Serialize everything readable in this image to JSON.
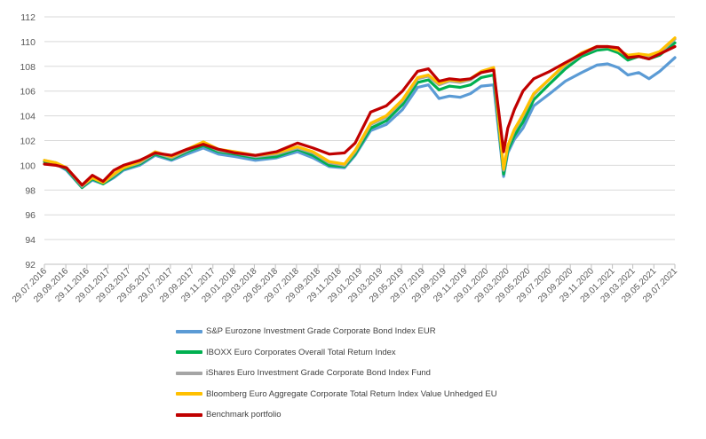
{
  "chart_data": {
    "type": "line",
    "title": "",
    "xlabel": "",
    "ylabel": "",
    "ylim": [
      92,
      112
    ],
    "yticks": [
      92,
      94,
      96,
      98,
      100,
      102,
      104,
      106,
      108,
      110,
      112
    ],
    "xlim": [
      "2016-07-29",
      "2021-07-29"
    ],
    "xticks": [
      "29.07.2016",
      "29.09.2016",
      "29.11.2016",
      "29.01.2017",
      "29.03.2017",
      "29.05.2017",
      "29.07.2017",
      "29.09.2017",
      "29.11.2017",
      "29.01.2018",
      "29.03.2018",
      "29.05.2018",
      "29.07.2018",
      "29.09.2018",
      "29.11.2018",
      "29.01.2019",
      "29.03.2019",
      "29.05.2019",
      "29.07.2019",
      "29.09.2019",
      "29.11.2019",
      "29.01.2020",
      "29.03.2020",
      "29.05.2020",
      "29.07.2020",
      "29.09.2020",
      "29.11.2020",
      "29.01.2021",
      "29.03.2021",
      "29.05.2021",
      "29.07.2021"
    ],
    "grid": "horizontal",
    "legend_position": "bottom",
    "series": [
      {
        "name": "S&P Eurozone Investment Grade Corporate Bond Index EUR",
        "color": "#5b9bd5",
        "x": [
          "2016-07-29",
          "2016-09-01",
          "2016-10-01",
          "2016-11-15",
          "2016-12-15",
          "2017-01-15",
          "2017-02-15",
          "2017-03-15",
          "2017-05-01",
          "2017-06-15",
          "2017-08-01",
          "2017-09-15",
          "2017-11-01",
          "2017-12-15",
          "2018-02-01",
          "2018-04-01",
          "2018-06-01",
          "2018-08-01",
          "2018-09-15",
          "2018-11-01",
          "2018-12-15",
          "2019-01-15",
          "2019-03-01",
          "2019-04-15",
          "2019-06-01",
          "2019-07-15",
          "2019-08-15",
          "2019-09-15",
          "2019-10-15",
          "2019-11-15",
          "2019-12-15",
          "2020-01-15",
          "2020-02-20",
          "2020-03-20",
          "2020-04-01",
          "2020-04-20",
          "2020-05-15",
          "2020-06-15",
          "2020-08-01",
          "2020-09-15",
          "2020-11-01",
          "2020-12-15",
          "2021-01-15",
          "2021-02-15",
          "2021-03-15",
          "2021-04-15",
          "2021-05-15",
          "2021-06-15",
          "2021-07-29"
        ],
        "y": [
          100.3,
          100.1,
          99.6,
          98.2,
          98.8,
          98.5,
          99.0,
          99.6,
          100.0,
          100.8,
          100.4,
          100.9,
          101.4,
          100.9,
          100.7,
          100.4,
          100.6,
          101.1,
          100.6,
          99.9,
          99.8,
          100.8,
          102.8,
          103.3,
          104.5,
          106.3,
          106.5,
          105.4,
          105.6,
          105.5,
          105.8,
          106.4,
          106.5,
          99.1,
          101.0,
          102.1,
          103.0,
          104.8,
          105.8,
          106.8,
          107.5,
          108.1,
          108.2,
          107.9,
          107.3,
          107.5,
          107.0,
          107.6,
          108.7
        ]
      },
      {
        "name": "IBOXX Euro Corporates Overall Total Return Index",
        "color": "#00b050",
        "x": [
          "2016-07-29",
          "2016-09-01",
          "2016-10-01",
          "2016-11-15",
          "2016-12-15",
          "2017-01-15",
          "2017-02-15",
          "2017-03-15",
          "2017-05-01",
          "2017-06-15",
          "2017-08-01",
          "2017-09-15",
          "2017-11-01",
          "2017-12-15",
          "2018-02-01",
          "2018-04-01",
          "2018-06-01",
          "2018-08-01",
          "2018-09-15",
          "2018-11-01",
          "2018-12-15",
          "2019-01-15",
          "2019-03-01",
          "2019-04-15",
          "2019-06-01",
          "2019-07-15",
          "2019-08-15",
          "2019-09-15",
          "2019-10-15",
          "2019-11-15",
          "2019-12-15",
          "2020-01-15",
          "2020-02-20",
          "2020-03-20",
          "2020-04-01",
          "2020-04-20",
          "2020-05-15",
          "2020-06-15",
          "2020-08-01",
          "2020-09-15",
          "2020-11-01",
          "2020-12-15",
          "2021-01-15",
          "2021-02-15",
          "2021-03-15",
          "2021-04-15",
          "2021-05-15",
          "2021-06-15",
          "2021-07-29"
        ],
        "y": [
          100.3,
          100.1,
          99.7,
          98.2,
          98.9,
          98.5,
          99.1,
          99.7,
          100.1,
          100.9,
          100.5,
          101.1,
          101.6,
          101.1,
          100.9,
          100.6,
          100.7,
          101.3,
          100.8,
          100.0,
          99.9,
          100.9,
          103.0,
          103.6,
          104.9,
          106.7,
          106.9,
          106.1,
          106.4,
          106.3,
          106.5,
          107.1,
          107.3,
          99.3,
          101.2,
          102.4,
          103.5,
          105.3,
          106.6,
          107.8,
          108.8,
          109.3,
          109.4,
          109.1,
          108.5,
          108.8,
          108.6,
          108.9,
          109.9
        ]
      },
      {
        "name": "iShares Euro Investment Grade Corporate Bond Index Fund",
        "color": "#a5a5a5",
        "x": [
          "2016-07-29",
          "2016-09-01",
          "2016-10-01",
          "2016-11-15",
          "2016-12-15",
          "2017-01-15",
          "2017-02-15",
          "2017-03-15",
          "2017-05-01",
          "2017-06-15",
          "2017-08-01",
          "2017-09-15",
          "2017-11-01",
          "2017-12-15",
          "2018-02-01",
          "2018-04-01",
          "2018-06-01",
          "2018-08-01",
          "2018-09-15",
          "2018-11-01",
          "2018-12-15",
          "2019-01-15",
          "2019-03-01",
          "2019-04-15",
          "2019-06-01",
          "2019-07-15",
          "2019-08-15",
          "2019-09-15",
          "2019-10-15",
          "2019-11-15",
          "2019-12-15",
          "2020-01-15",
          "2020-02-20",
          "2020-03-20",
          "2020-04-01",
          "2020-04-20",
          "2020-05-15",
          "2020-06-15",
          "2020-08-01",
          "2020-09-15",
          "2020-11-01",
          "2020-12-15",
          "2021-01-15",
          "2021-02-15",
          "2021-03-15",
          "2021-04-15",
          "2021-05-15",
          "2021-06-15",
          "2021-07-29"
        ],
        "y": [
          100.4,
          100.2,
          99.8,
          98.3,
          99.0,
          98.6,
          99.2,
          99.8,
          100.2,
          101.0,
          100.6,
          101.2,
          101.8,
          101.2,
          101.0,
          100.7,
          100.9,
          101.4,
          101.0,
          100.2,
          100.0,
          101.1,
          103.3,
          103.9,
          105.2,
          107.0,
          107.2,
          106.5,
          106.8,
          106.7,
          106.9,
          107.5,
          107.8,
          99.6,
          101.5,
          102.8,
          104.0,
          105.7,
          107.0,
          108.1,
          109.0,
          109.5,
          109.6,
          109.3,
          108.8,
          109.0,
          108.8,
          109.1,
          110.2
        ]
      },
      {
        "name": "Bloomberg Euro Aggregate Corporate Total Return Index Value Unhedged EU",
        "color": "#ffc000",
        "x": [
          "2016-07-29",
          "2016-09-01",
          "2016-10-01",
          "2016-11-15",
          "2016-12-15",
          "2017-01-15",
          "2017-02-15",
          "2017-03-15",
          "2017-05-01",
          "2017-06-15",
          "2017-08-01",
          "2017-09-15",
          "2017-11-01",
          "2017-12-15",
          "2018-02-01",
          "2018-04-01",
          "2018-06-01",
          "2018-08-01",
          "2018-09-15",
          "2018-11-01",
          "2018-12-15",
          "2019-01-15",
          "2019-03-01",
          "2019-04-15",
          "2019-06-01",
          "2019-07-15",
          "2019-08-15",
          "2019-09-15",
          "2019-10-15",
          "2019-11-15",
          "2019-12-15",
          "2020-01-15",
          "2020-02-20",
          "2020-03-20",
          "2020-04-01",
          "2020-04-20",
          "2020-05-15",
          "2020-06-15",
          "2020-08-01",
          "2020-09-15",
          "2020-11-01",
          "2020-12-15",
          "2021-01-15",
          "2021-02-15",
          "2021-03-15",
          "2021-04-15",
          "2021-05-15",
          "2021-06-15",
          "2021-07-29"
        ],
        "y": [
          100.4,
          100.2,
          99.8,
          98.4,
          99.0,
          98.6,
          99.3,
          99.8,
          100.3,
          101.1,
          100.7,
          101.3,
          101.9,
          101.3,
          101.1,
          100.8,
          101.0,
          101.5,
          101.1,
          100.3,
          100.1,
          101.2,
          103.4,
          104.0,
          105.3,
          107.1,
          107.3,
          106.6,
          106.9,
          106.8,
          107.0,
          107.6,
          107.9,
          99.7,
          101.6,
          102.9,
          104.1,
          105.8,
          107.0,
          108.2,
          109.1,
          109.6,
          109.6,
          109.3,
          108.9,
          109.0,
          108.9,
          109.2,
          110.3
        ]
      },
      {
        "name": "Benchmark portfolio",
        "color": "#c00000",
        "x": [
          "2016-07-29",
          "2016-09-01",
          "2016-10-01",
          "2016-11-15",
          "2016-12-15",
          "2017-01-15",
          "2017-02-15",
          "2017-03-15",
          "2017-05-01",
          "2017-06-15",
          "2017-08-01",
          "2017-09-15",
          "2017-11-01",
          "2017-12-15",
          "2018-02-01",
          "2018-04-01",
          "2018-06-01",
          "2018-08-01",
          "2018-09-15",
          "2018-11-01",
          "2018-12-15",
          "2019-01-15",
          "2019-03-01",
          "2019-04-15",
          "2019-06-01",
          "2019-07-15",
          "2019-08-15",
          "2019-09-15",
          "2019-10-15",
          "2019-11-15",
          "2019-12-15",
          "2020-01-15",
          "2020-02-20",
          "2020-03-20",
          "2020-04-01",
          "2020-04-20",
          "2020-05-15",
          "2020-06-15",
          "2020-08-01",
          "2020-09-15",
          "2020-11-01",
          "2020-12-15",
          "2021-01-15",
          "2021-02-15",
          "2021-03-15",
          "2021-04-15",
          "2021-05-15",
          "2021-06-15",
          "2021-07-29"
        ],
        "y": [
          100.1,
          100.0,
          99.8,
          98.4,
          99.2,
          98.7,
          99.6,
          100.0,
          100.4,
          101.0,
          100.8,
          101.3,
          101.7,
          101.3,
          101.0,
          100.8,
          101.1,
          101.8,
          101.4,
          100.9,
          101.0,
          101.8,
          104.3,
          104.8,
          106.0,
          107.6,
          107.8,
          106.8,
          107.0,
          106.9,
          107.0,
          107.5,
          107.7,
          101.1,
          103.0,
          104.5,
          106.0,
          107.0,
          107.6,
          108.3,
          109.0,
          109.6,
          109.6,
          109.5,
          108.7,
          108.8,
          108.6,
          109.0,
          109.6
        ]
      }
    ]
  }
}
